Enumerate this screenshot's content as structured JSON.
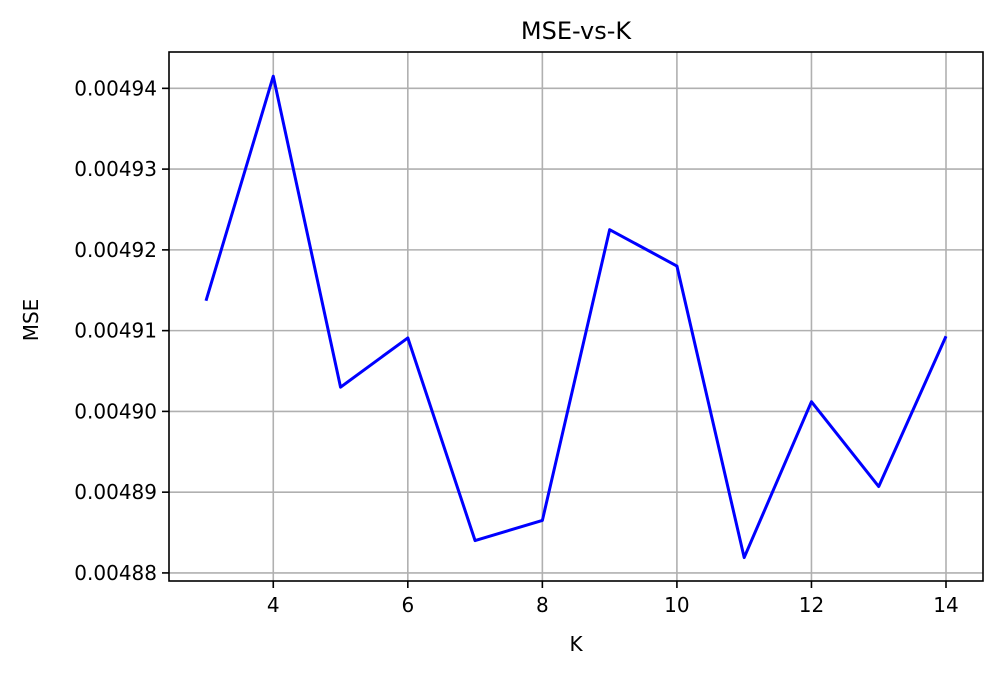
{
  "chart_data": {
    "type": "line",
    "title": "MSE-vs-K",
    "xlabel": "K",
    "ylabel": "MSE",
    "x": [
      3,
      4,
      5,
      6,
      7,
      8,
      9,
      10,
      11,
      12,
      13,
      14
    ],
    "series": [
      {
        "values": [
          0.0049137,
          0.0049415,
          0.004903,
          0.0049091,
          0.004884,
          0.0048865,
          0.0049225,
          0.004918,
          0.0048819,
          0.0049012,
          0.0048907,
          0.0049093
        ],
        "color": "#0000ff"
      }
    ],
    "xlim": [
      2.45,
      14.55
    ],
    "ylim": [
      0.004879,
      0.0049445
    ],
    "xticks": [
      4,
      6,
      8,
      10,
      12,
      14
    ],
    "xtick_labels": [
      "4",
      "6",
      "8",
      "10",
      "12",
      "14"
    ],
    "yticks": [
      0.00488,
      0.00489,
      0.0049,
      0.00491,
      0.00492,
      0.00493,
      0.00494
    ],
    "ytick_labels": [
      "0.00488",
      "0.00489",
      "0.00490",
      "0.00491",
      "0.00492",
      "0.00493",
      "0.00494"
    ],
    "grid": true,
    "grid_color": "#b0b0b0",
    "axes_color": "#000000",
    "background": "#ffffff"
  }
}
